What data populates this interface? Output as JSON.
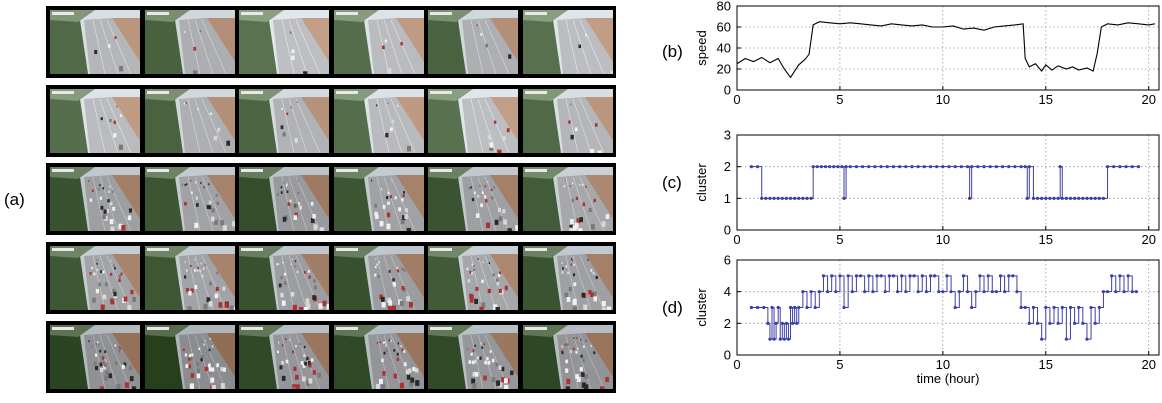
{
  "labels": {
    "a": "(a)",
    "b": "(b)",
    "c": "(c)",
    "d": "(d)"
  },
  "thumbnails": {
    "rows": 5,
    "cols": 6,
    "traffic_level_by_row": [
      0.05,
      0.15,
      0.65,
      0.85,
      0.9
    ],
    "tone_by_row": [
      "light",
      "light",
      "mixed",
      "mixed",
      "dark"
    ]
  },
  "chart_data": [
    {
      "type": "line",
      "panel": "(b)",
      "xlabel": "",
      "ylabel": "speed",
      "xlim": [
        0,
        20.5
      ],
      "ylim": [
        0,
        80
      ],
      "xticks": [
        0,
        5,
        10,
        15,
        20
      ],
      "yticks": [
        0,
        20,
        40,
        60,
        80
      ],
      "grid": true,
      "series": [
        {
          "color": "#000000",
          "x": [
            0.0,
            0.4,
            0.8,
            1.2,
            1.6,
            2.0,
            2.3,
            2.6,
            3.0,
            3.3,
            3.5,
            3.7,
            4.0,
            4.5,
            5.0,
            5.5,
            6.0,
            6.5,
            7.0,
            7.5,
            8.0,
            8.5,
            9.0,
            9.5,
            10.0,
            10.5,
            11.0,
            11.5,
            12.0,
            12.5,
            13.0,
            13.5,
            13.9,
            14.0,
            14.2,
            14.5,
            14.8,
            15.0,
            15.3,
            15.6,
            16.0,
            16.3,
            16.6,
            17.0,
            17.3,
            17.5,
            17.7,
            18.0,
            18.5,
            19.0,
            19.5,
            20.0,
            20.3
          ],
          "y": [
            25,
            30,
            27,
            31,
            26,
            30,
            20,
            12,
            24,
            29,
            34,
            62,
            65,
            64,
            63,
            64,
            63,
            62,
            61,
            63,
            62,
            61,
            62,
            60,
            60,
            61,
            58,
            59,
            57,
            60,
            61,
            62,
            63,
            30,
            22,
            25,
            18,
            24,
            19,
            23,
            20,
            22,
            19,
            21,
            18,
            35,
            60,
            63,
            62,
            64,
            63,
            62,
            63
          ]
        }
      ]
    },
    {
      "type": "line",
      "panel": "(c)",
      "xlabel": "",
      "ylabel": "cluster",
      "xlim": [
        0,
        20.5
      ],
      "ylim": [
        0,
        3
      ],
      "xticks": [
        0,
        5,
        10,
        15,
        20
      ],
      "yticks": [
        0,
        1,
        2,
        3
      ],
      "grid": true,
      "series": [
        {
          "color": "#3b3fa8",
          "x": [
            0.7,
            1.0,
            1.2,
            1.4,
            1.6,
            1.8,
            2.0,
            2.2,
            2.4,
            2.6,
            2.8,
            3.0,
            3.2,
            3.4,
            3.6,
            3.7,
            3.9,
            4.1,
            4.3,
            4.5,
            4.7,
            4.9,
            5.1,
            5.2,
            5.3,
            5.5,
            5.8,
            6.1,
            6.4,
            6.7,
            7.0,
            7.3,
            7.6,
            7.9,
            8.2,
            8.5,
            8.8,
            9.1,
            9.4,
            9.7,
            10.0,
            10.3,
            10.6,
            10.9,
            11.2,
            11.3,
            11.4,
            11.7,
            12.0,
            12.3,
            12.6,
            12.9,
            13.2,
            13.5,
            13.8,
            14.0,
            14.1,
            14.2,
            14.4,
            14.6,
            14.8,
            15.0,
            15.2,
            15.4,
            15.6,
            15.7,
            15.8,
            16.0,
            16.2,
            16.4,
            16.6,
            16.8,
            17.0,
            17.2,
            17.4,
            17.6,
            17.8,
            18.0,
            18.3,
            18.6,
            18.9,
            19.2,
            19.5
          ],
          "y": [
            2,
            2,
            1,
            1,
            1,
            1,
            1,
            1,
            1,
            1,
            1,
            1,
            1,
            1,
            1,
            2,
            2,
            2,
            2,
            2,
            2,
            2,
            2,
            1,
            2,
            2,
            2,
            2,
            2,
            2,
            2,
            2,
            2,
            2,
            2,
            2,
            2,
            2,
            2,
            2,
            2,
            2,
            2,
            2,
            2,
            1,
            2,
            2,
            2,
            2,
            2,
            2,
            2,
            2,
            2,
            2,
            1,
            2,
            1,
            1,
            1,
            1,
            1,
            1,
            1,
            2,
            1,
            1,
            1,
            1,
            1,
            1,
            1,
            1,
            1,
            1,
            1,
            2,
            2,
            2,
            2,
            2,
            2
          ]
        }
      ]
    },
    {
      "type": "line",
      "panel": "(d)",
      "xlabel": "time (hour)",
      "ylabel": "cluster",
      "xlim": [
        0,
        20.5
      ],
      "ylim": [
        0,
        6
      ],
      "xticks": [
        0,
        5,
        10,
        15,
        20
      ],
      "yticks": [
        0,
        2,
        4,
        6
      ],
      "grid": true,
      "series": [
        {
          "color": "#3b3fa8",
          "x": [
            0.7,
            1.0,
            1.3,
            1.5,
            1.6,
            1.7,
            1.8,
            1.9,
            2.0,
            2.1,
            2.2,
            2.3,
            2.4,
            2.5,
            2.6,
            2.7,
            2.8,
            2.9,
            3.0,
            3.2,
            3.4,
            3.6,
            3.8,
            4.0,
            4.2,
            4.4,
            4.6,
            4.8,
            5.0,
            5.2,
            5.4,
            5.6,
            5.8,
            6.0,
            6.2,
            6.4,
            6.6,
            6.8,
            7.0,
            7.2,
            7.4,
            7.6,
            7.8,
            8.0,
            8.2,
            8.4,
            8.6,
            8.8,
            9.0,
            9.2,
            9.4,
            9.6,
            9.8,
            10.0,
            10.2,
            10.4,
            10.6,
            10.8,
            11.0,
            11.2,
            11.4,
            11.6,
            11.8,
            12.0,
            12.2,
            12.4,
            12.6,
            12.8,
            13.0,
            13.2,
            13.4,
            13.6,
            13.8,
            14.0,
            14.2,
            14.4,
            14.6,
            14.8,
            15.0,
            15.2,
            15.4,
            15.6,
            15.8,
            16.0,
            16.2,
            16.4,
            16.6,
            16.8,
            17.0,
            17.2,
            17.4,
            17.6,
            17.8,
            18.0,
            18.2,
            18.4,
            18.6,
            18.8,
            19.0,
            19.2,
            19.4
          ],
          "y": [
            3,
            3,
            3,
            2,
            1,
            3,
            1,
            2,
            3,
            1,
            2,
            1,
            2,
            1,
            3,
            2,
            3,
            2,
            3,
            4,
            3,
            4,
            3,
            4,
            5,
            4,
            5,
            4,
            5,
            3,
            5,
            4,
            5,
            5,
            4,
            5,
            4,
            5,
            5,
            4,
            5,
            5,
            4,
            5,
            4,
            5,
            5,
            4,
            5,
            4,
            5,
            5,
            4,
            4,
            5,
            4,
            3,
            4,
            5,
            4,
            3,
            4,
            5,
            4,
            5,
            4,
            4,
            5,
            4,
            5,
            5,
            4,
            3,
            3,
            2,
            3,
            2,
            1,
            3,
            2,
            3,
            2,
            3,
            1,
            3,
            2,
            3,
            2,
            1,
            3,
            2,
            3,
            4,
            4,
            5,
            4,
            5,
            4,
            5,
            4,
            4
          ]
        }
      ]
    }
  ]
}
